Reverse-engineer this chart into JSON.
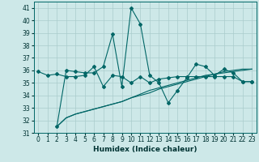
{
  "xlabel": "Humidex (Indice chaleur)",
  "background_color": "#cde8e8",
  "grid_color": "#aacccc",
  "line_color": "#006666",
  "xlim": [
    -0.5,
    23.5
  ],
  "ylim": [
    31,
    41.5
  ],
  "yticks": [
    31,
    32,
    33,
    34,
    35,
    36,
    37,
    38,
    39,
    40,
    41
  ],
  "xticks": [
    0,
    1,
    2,
    3,
    4,
    5,
    6,
    7,
    8,
    9,
    10,
    11,
    12,
    13,
    14,
    15,
    16,
    17,
    18,
    19,
    20,
    21,
    22,
    23
  ],
  "s1_x": [
    0,
    1,
    2,
    3,
    4,
    5,
    6,
    7,
    8,
    9,
    10,
    11,
    12,
    13,
    14,
    15,
    16,
    17,
    18,
    19,
    20,
    21,
    22,
    23
  ],
  "s1_y": [
    35.9,
    35.6,
    35.7,
    35.5,
    35.5,
    35.6,
    36.3,
    34.7,
    35.6,
    35.5,
    35.0,
    35.5,
    35.0,
    35.3,
    35.4,
    35.5,
    35.5,
    35.5,
    35.5,
    35.5,
    35.5,
    35.5,
    35.1,
    35.1
  ],
  "s2_x": [
    2,
    3,
    4,
    5,
    6,
    7,
    8,
    9,
    10,
    11,
    12,
    13,
    14,
    15,
    16,
    17,
    18,
    19,
    20,
    21,
    22,
    23
  ],
  "s2_y": [
    31.5,
    32.2,
    32.5,
    32.7,
    32.9,
    33.1,
    33.3,
    33.5,
    33.8,
    34.0,
    34.2,
    34.5,
    34.7,
    34.9,
    35.1,
    35.3,
    35.5,
    35.7,
    35.8,
    35.9,
    36.0,
    36.1
  ],
  "s3_x": [
    2,
    3,
    4,
    5,
    6,
    7,
    8,
    9,
    10,
    11,
    12,
    13,
    14,
    15,
    16,
    17,
    18,
    19,
    20,
    21,
    22,
    23
  ],
  "s3_y": [
    31.5,
    32.2,
    32.5,
    32.7,
    32.9,
    33.1,
    33.3,
    33.5,
    33.8,
    34.1,
    34.4,
    34.6,
    34.8,
    35.0,
    35.2,
    35.4,
    35.6,
    35.7,
    35.9,
    36.0,
    36.1,
    36.1
  ],
  "s4_x": [
    2,
    3,
    4,
    5,
    6,
    7,
    8,
    9,
    10,
    11,
    12,
    13,
    14,
    15,
    16,
    17,
    18,
    19,
    20,
    21,
    22,
    23
  ],
  "s4_y": [
    31.5,
    36.0,
    35.9,
    35.8,
    35.8,
    36.3,
    38.9,
    34.7,
    41.0,
    39.7,
    35.6,
    35.0,
    33.4,
    34.4,
    35.4,
    36.5,
    36.3,
    35.6,
    36.1,
    35.8,
    35.1,
    35.1
  ]
}
